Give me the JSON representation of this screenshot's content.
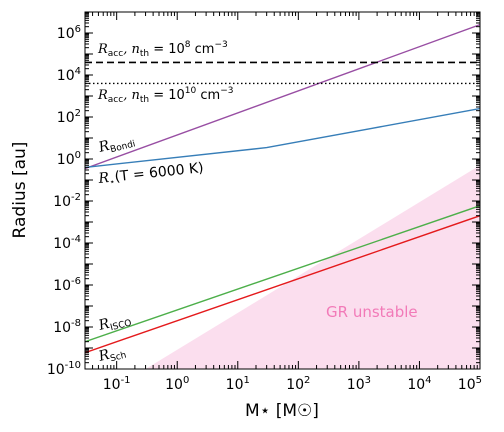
{
  "chart_data": {
    "type": "line",
    "xlabel": "M⋆ [M☉]",
    "ylabel": "Radius [au]",
    "xscale": "log",
    "yscale": "log",
    "xlim": [
      0.03,
      100000
    ],
    "ylim": [
      1e-10,
      10000000
    ],
    "x_ticks": [
      {
        "value": 0.1,
        "base": "10",
        "exp": "-1"
      },
      {
        "value": 1,
        "base": "10",
        "exp": "0"
      },
      {
        "value": 10,
        "base": "10",
        "exp": "1"
      },
      {
        "value": 100,
        "base": "10",
        "exp": "2"
      },
      {
        "value": 1000,
        "base": "10",
        "exp": "3"
      },
      {
        "value": 10000,
        "base": "10",
        "exp": "4"
      },
      {
        "value": 100000,
        "base": "10",
        "exp": "5"
      }
    ],
    "y_ticks": [
      {
        "value": 1e-10,
        "base": "10",
        "exp": "-10"
      },
      {
        "value": 1e-08,
        "base": "10",
        "exp": "-8"
      },
      {
        "value": 1e-06,
        "base": "10",
        "exp": "-6"
      },
      {
        "value": 0.0001,
        "base": "10",
        "exp": "-4"
      },
      {
        "value": 0.01,
        "base": "10",
        "exp": "-2"
      },
      {
        "value": 1,
        "base": "10",
        "exp": "0"
      },
      {
        "value": 100,
        "base": "10",
        "exp": "2"
      },
      {
        "value": 10000,
        "base": "10",
        "exp": "4"
      },
      {
        "value": 1000000,
        "base": "10",
        "exp": "6"
      }
    ],
    "grid": false,
    "legend": "none",
    "series": [
      {
        "name": "R_Bondi",
        "color": "#984ea3",
        "style": "solid",
        "points": [
          [
            0.03,
            0.35
          ],
          [
            100000,
            2500000
          ]
        ]
      },
      {
        "name": "R⋆(T=6000K)",
        "color": "#377eb8",
        "style": "solid",
        "points": [
          [
            0.03,
            0.4
          ],
          [
            30,
            3.5
          ],
          [
            100000,
            250
          ]
        ]
      },
      {
        "name": "R_ISCO",
        "color": "#4daf4a",
        "style": "solid",
        "points": [
          [
            0.03,
            2e-09
          ],
          [
            100000,
            0.006
          ]
        ]
      },
      {
        "name": "R_Sch",
        "color": "#e41a1c",
        "style": "solid",
        "points": [
          [
            0.03,
            6e-10
          ],
          [
            100000,
            0.002
          ]
        ]
      },
      {
        "name": "R_acc, n_th=10^8 cm^-3",
        "color": "#000000",
        "style": "dashed",
        "points": [
          [
            0.03,
            40000
          ],
          [
            100000,
            40000
          ]
        ]
      },
      {
        "name": "R_acc, n_th=10^10 cm^-3",
        "color": "#000000",
        "style": "dotted",
        "points": [
          [
            0.03,
            4000
          ],
          [
            100000,
            4000
          ]
        ]
      }
    ],
    "regions": [
      {
        "name": "GR unstable",
        "color": "#f7b6d9",
        "points": [
          [
            0.3,
            1e-10
          ],
          [
            100000,
            0.5
          ],
          [
            100000,
            1e-10
          ]
        ]
      }
    ],
    "annotations": {
      "racc8": {
        "main": "R",
        "sub": "acc",
        "mid": ", n",
        "sub2": "th",
        "eq": " = 10",
        "sup": "8",
        "unit": " cm",
        "unitsup": "−3"
      },
      "racc10": {
        "main": "R",
        "sub": "acc",
        "mid": ", n",
        "sub2": "th",
        "eq": " = 10",
        "sup": "10",
        "unit": " cm",
        "unitsup": "−3"
      },
      "rbondi": {
        "main": "R",
        "sub": "Bondi"
      },
      "rstar": {
        "main": "R",
        "sub": "⋆",
        "rest": "(T = 6000 K)"
      },
      "risco": {
        "main": "R",
        "sub": "ISCO"
      },
      "rsch": {
        "main": "R",
        "sub": "Sch"
      },
      "gr_unstable": "GR unstable"
    }
  }
}
